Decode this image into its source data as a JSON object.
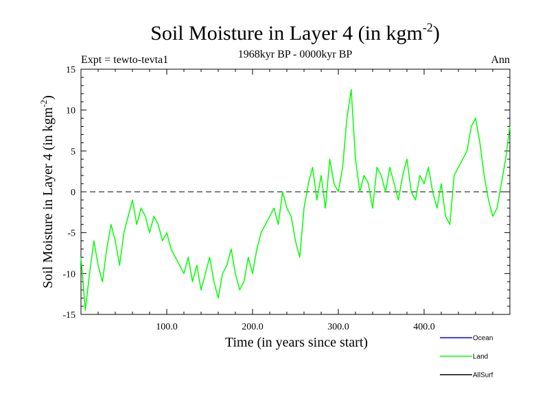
{
  "chart_data": {
    "type": "line",
    "title": "Soil Moisture in Layer 4 (in kgm",
    "title_sup": "-2",
    "title_end": ")",
    "subtitle_left": "Expt = tewto-tevta1",
    "subtitle_center": "1968kyr BP - 0000kyr BP",
    "subtitle_right": "Ann",
    "xlabel": "Time (in years since start)",
    "ylabel": "Soil Moisture in Layer 4 (in kgm",
    "ylabel_sup": "-2",
    "ylabel_end": ")",
    "xlim": [
      0,
      500
    ],
    "ylim": [
      -15,
      15
    ],
    "x_ticks": [
      100,
      200,
      300,
      400
    ],
    "x_tick_labels": [
      "100.0",
      "200.0",
      "300.0",
      "400.0"
    ],
    "y_ticks": [
      -15,
      -10,
      -5,
      0,
      5,
      10,
      15
    ],
    "y_tick_labels": [
      "-15",
      "-10",
      "-5",
      "0",
      "5",
      "10",
      "15"
    ],
    "reference_line": 0,
    "legend": [
      {
        "name": "Ocean",
        "color": "#0000ff"
      },
      {
        "name": "Land",
        "color": "#00ff00"
      },
      {
        "name": "AllSurf",
        "color": "#000000"
      }
    ],
    "series": [
      {
        "name": "Land",
        "color": "#00ff00",
        "x": [
          0,
          5,
          10,
          15,
          20,
          25,
          30,
          35,
          40,
          45,
          50,
          55,
          60,
          65,
          70,
          75,
          80,
          85,
          90,
          95,
          100,
          105,
          110,
          115,
          120,
          125,
          130,
          135,
          140,
          145,
          150,
          155,
          160,
          165,
          170,
          175,
          180,
          185,
          190,
          195,
          200,
          205,
          210,
          215,
          220,
          225,
          230,
          235,
          240,
          245,
          250,
          255,
          260,
          265,
          270,
          275,
          280,
          285,
          290,
          295,
          300,
          305,
          310,
          315,
          320,
          325,
          330,
          335,
          340,
          345,
          350,
          355,
          360,
          365,
          370,
          375,
          380,
          385,
          390,
          395,
          400,
          405,
          410,
          415,
          420,
          425,
          430,
          435,
          440,
          445,
          450,
          455,
          460,
          465,
          470,
          475,
          480,
          485,
          490,
          495,
          500
        ],
        "values": [
          -8,
          -14.5,
          -10,
          -6,
          -9,
          -11,
          -7,
          -4,
          -6,
          -9,
          -5,
          -3,
          -1,
          -4,
          -2,
          -3,
          -5,
          -3,
          -4,
          -6,
          -5,
          -7,
          -8,
          -9,
          -10,
          -8,
          -11,
          -9,
          -12,
          -10,
          -8,
          -11,
          -13,
          -10,
          -9,
          -7,
          -10,
          -12,
          -11,
          -8,
          -10,
          -7,
          -5,
          -4,
          -3,
          -2,
          -4,
          0,
          -2,
          -3,
          -6,
          -8,
          -2,
          1,
          3,
          -1,
          2,
          -2,
          4,
          1,
          0,
          3,
          9,
          12.5,
          4,
          0,
          2,
          1,
          -2,
          3,
          2,
          0,
          3,
          1,
          -1,
          2,
          4,
          0,
          -1,
          2,
          1,
          3,
          0,
          -2,
          1,
          -3,
          -4,
          2,
          3,
          4,
          5,
          8,
          9,
          6,
          2,
          -1,
          -3,
          -2,
          1,
          4,
          8
        ]
      }
    ]
  }
}
